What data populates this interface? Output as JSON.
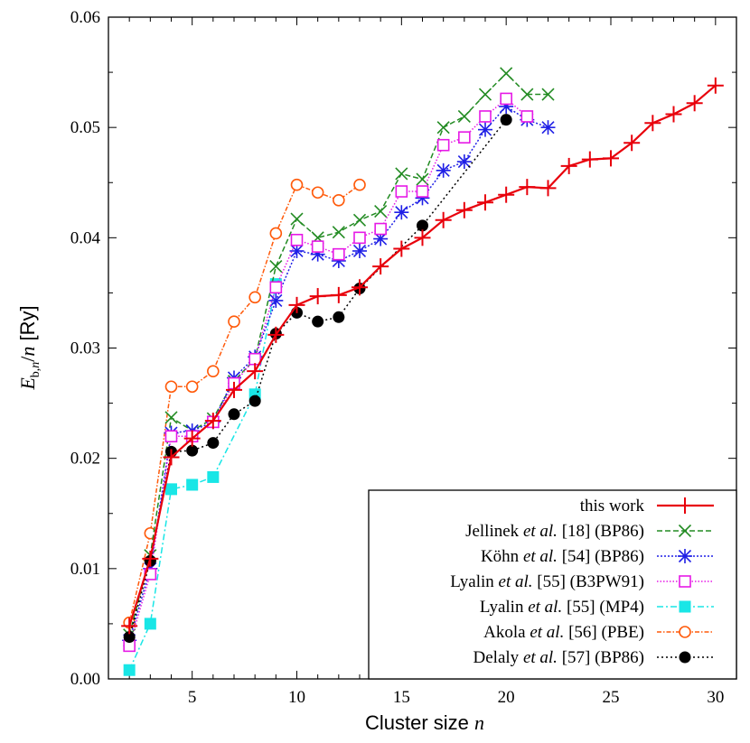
{
  "chart_data": {
    "type": "line",
    "xlabel": "Cluster size n",
    "ylabel": "E_b,n/n [Ry]",
    "xlim": [
      1,
      31
    ],
    "ylim": [
      0.0,
      0.06
    ],
    "xticks": [
      5,
      10,
      15,
      20,
      25,
      30
    ],
    "yticks": [
      0.0,
      0.01,
      0.02,
      0.03,
      0.04,
      0.05,
      0.06
    ],
    "ytick_labels": [
      "0.00",
      "0.01",
      "0.02",
      "0.03",
      "0.04",
      "0.05",
      "0.06"
    ],
    "legend_position": "bottom-right",
    "series": [
      {
        "name": "this work",
        "color": "#e8000b",
        "dash": "",
        "marker": "plus",
        "x": [
          2,
          3,
          4,
          5,
          6,
          7,
          8,
          9,
          10,
          11,
          12,
          13,
          14,
          15,
          16,
          17,
          18,
          19,
          20,
          21,
          22,
          23,
          24,
          25,
          26,
          27,
          28,
          29,
          30
        ],
        "y": [
          0.0048,
          0.0109,
          0.0201,
          0.0218,
          0.0234,
          0.0262,
          0.0279,
          0.0312,
          0.0339,
          0.0347,
          0.0348,
          0.0355,
          0.0374,
          0.039,
          0.04,
          0.0416,
          0.0425,
          0.0432,
          0.0439,
          0.0446,
          0.0445,
          0.0465,
          0.0471,
          0.0472,
          0.0486,
          0.0504,
          0.0512,
          0.0522,
          0.0538
        ]
      },
      {
        "name": "Jellinek et al. [18] (BP86)",
        "color": "#228b22",
        "dash": "6,3",
        "marker": "x",
        "x": [
          2,
          3,
          4,
          5,
          6,
          7,
          8,
          9,
          10,
          11,
          12,
          13,
          14,
          15,
          16,
          17,
          18,
          19,
          20,
          21,
          22
        ],
        "y": [
          0.004,
          0.0112,
          0.0237,
          0.0225,
          0.0236,
          0.027,
          0.029,
          0.0374,
          0.0417,
          0.04,
          0.0405,
          0.0416,
          0.0424,
          0.0458,
          0.0453,
          0.05,
          0.051,
          0.053,
          0.0549,
          0.053,
          0.053
        ]
      },
      {
        "name": "Köhn et al. [54] (BP86)",
        "color": "#1f1fe6",
        "dash": "2,2",
        "marker": "asterisk",
        "x": [
          2,
          3,
          4,
          5,
          6,
          7,
          8,
          9,
          10,
          11,
          12,
          13,
          14,
          15,
          16,
          17,
          18,
          19,
          20,
          21,
          22
        ],
        "y": [
          0.0035,
          0.01,
          0.0223,
          0.0225,
          0.0233,
          0.0273,
          0.0292,
          0.0343,
          0.0388,
          0.0385,
          0.0379,
          0.0388,
          0.0399,
          0.0423,
          0.0436,
          0.0461,
          0.0469,
          0.0498,
          0.0519,
          0.0507,
          0.05
        ]
      },
      {
        "name": "Lyalin et al. [55] (B3PW91)",
        "color": "#e619e6",
        "dash": "1.5,2",
        "marker": "open-square",
        "x": [
          2,
          3,
          4,
          5,
          6,
          7,
          8,
          9,
          10,
          11,
          12,
          13,
          14,
          15,
          16,
          17,
          18,
          19,
          20,
          21
        ],
        "y": [
          0.003,
          0.0095,
          0.022,
          0.022,
          0.0233,
          0.0268,
          0.029,
          0.0355,
          0.0398,
          0.0392,
          0.0385,
          0.04,
          0.0408,
          0.0442,
          0.0442,
          0.0484,
          0.0491,
          0.051,
          0.0526,
          0.051
        ]
      },
      {
        "name": "Lyalin et al. [55] (MP4)",
        "color": "#19e6e6",
        "dash": "7,3,2,3",
        "marker": "filled-square",
        "x": [
          2,
          3,
          4,
          5,
          6,
          8,
          9
        ],
        "y": [
          0.0008,
          0.005,
          0.0172,
          0.0176,
          0.0183,
          0.0258,
          0.0358
        ]
      },
      {
        "name": "Akola et al. [56] (PBE)",
        "color": "#ff5a0a",
        "dash": "5,2,1.5,2",
        "marker": "open-circle",
        "x": [
          2,
          3,
          4,
          5,
          6,
          7,
          8,
          9,
          10,
          11,
          12,
          13
        ],
        "y": [
          0.0051,
          0.0132,
          0.0265,
          0.0265,
          0.0279,
          0.0324,
          0.0346,
          0.0404,
          0.0448,
          0.0441,
          0.0434,
          0.0448
        ]
      },
      {
        "name": "Delaly et al. [57] (BP86)",
        "color": "#000000",
        "dash": "2,3",
        "marker": "filled-circle",
        "x": [
          2,
          3,
          4,
          5,
          6,
          7,
          8,
          9,
          10,
          11,
          12,
          13,
          16,
          20
        ],
        "y": [
          0.0038,
          0.0107,
          0.0206,
          0.0207,
          0.0214,
          0.024,
          0.0252,
          0.0313,
          0.0332,
          0.0324,
          0.0328,
          0.0354,
          0.0411,
          0.0507
        ]
      }
    ]
  },
  "legend": [
    {
      "author": "",
      "etal": "",
      "rest": "this work"
    },
    {
      "author": "Jellinek ",
      "etal": "et al.",
      "rest": " [18] (BP86)"
    },
    {
      "author": "Köhn ",
      "etal": "et al.",
      "rest": " [54] (BP86)"
    },
    {
      "author": "Lyalin ",
      "etal": "et al.",
      "rest": " [55] (B3PW91)"
    },
    {
      "author": "Lyalin ",
      "etal": "et al.",
      "rest": " [55] (MP4)"
    },
    {
      "author": "Akola ",
      "etal": "et al.",
      "rest": " [56] (PBE)"
    },
    {
      "author": "Delaly ",
      "etal": "et al.",
      "rest": " [57] (BP86)"
    }
  ],
  "axis_titles": {
    "x_text": "Cluster size ",
    "x_var": "n",
    "y_E": "E",
    "y_sub": "b,",
    "y_sub_n": "n",
    "y_slash": "/",
    "y_n": "n",
    "y_unit": " [Ry]"
  }
}
